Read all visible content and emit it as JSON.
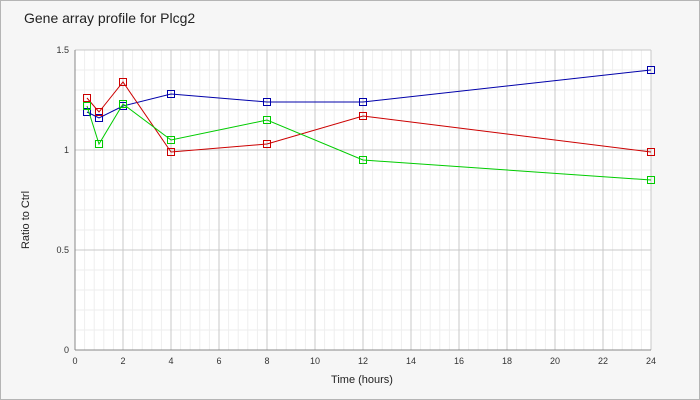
{
  "chart_data": {
    "type": "line",
    "title": "Gene array profile for Plcg2",
    "xlabel": "Time (hours)",
    "ylabel": "Ratio to Ctrl",
    "xlim": [
      0,
      24
    ],
    "ylim": [
      0,
      1.5
    ],
    "x_ticks": [
      0,
      2,
      4,
      6,
      8,
      10,
      12,
      14,
      16,
      18,
      20,
      22,
      24
    ],
    "y_ticks": [
      0,
      0.5,
      1,
      1.5
    ],
    "y_tick_labels": [
      "0",
      "0.5",
      "1",
      "1.5"
    ],
    "grid": true,
    "x": [
      0.5,
      1,
      2,
      4,
      8,
      12,
      24
    ],
    "series": [
      {
        "color": "#0000aa",
        "values": [
          1.19,
          1.16,
          1.22,
          1.28,
          1.24,
          1.24,
          1.4
        ]
      },
      {
        "color": "#cc0000",
        "values": [
          1.26,
          1.19,
          1.34,
          0.99,
          1.03,
          1.17,
          0.99
        ]
      },
      {
        "color": "#00cc00",
        "values": [
          1.22,
          1.03,
          1.23,
          1.05,
          1.15,
          0.95,
          0.85
        ]
      }
    ]
  }
}
